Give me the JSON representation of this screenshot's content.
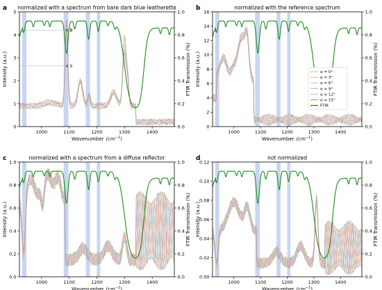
{
  "colors": {
    "ftir": "#1a8a1a",
    "band": "#b4c8ec",
    "series": [
      "#9ec3e0",
      "#f0b27a",
      "#9fd89a",
      "#e89c9c",
      "#c5b2e0",
      "#b48c82"
    ]
  },
  "chart_data": [
    {
      "type": "line",
      "panel_label": "a",
      "title": "normalized with a spectrum from bare dark blue leatherette",
      "xlabel": "Wavenumber",
      "xlabel_unit": "(cm",
      "xlabel_unit_sup": "−1",
      "xlabel_unit_close": ")",
      "ylabel": "Intensity (a.u.)",
      "y2label": "FTIR Transmission (%)",
      "xlim": [
        920,
        1480
      ],
      "ylim": [
        0,
        5
      ],
      "y2lim": [
        0,
        1.0
      ],
      "yticks": [
        "0",
        "1",
        "2",
        "3",
        "4",
        "5"
      ],
      "y2ticks": [
        "0.0",
        "0.2",
        "0.4",
        "0.6",
        "0.8",
        "1.0"
      ],
      "xticks": [
        "1000",
        "1100",
        "1200",
        "1300",
        "1400"
      ],
      "annotations": [
        {
          "text": "B",
          "x": 1092,
          "y": 4.2
        },
        {
          "text": "S",
          "x": 1092,
          "y": 2.65
        }
      ],
      "bands": [
        [
          930,
          945
        ],
        [
          1080,
          1097
        ],
        [
          1160,
          1175
        ],
        [
          1200,
          1212
        ]
      ],
      "ftir_profile": "raman_a"
    },
    {
      "type": "line",
      "panel_label": "b",
      "title": "normalized with the reference spectrum",
      "xlabel": "Wavenumber",
      "xlabel_unit": "(cm",
      "xlabel_unit_sup": "−1",
      "xlabel_unit_close": ")",
      "ylabel": "Intensity (a.u.)",
      "y2label": "FTIR Transmission (%)",
      "xlim": [
        920,
        1480
      ],
      "ylim": [
        0,
        16
      ],
      "y2lim": [
        0,
        1.0
      ],
      "yticks": [
        "0",
        "2",
        "4",
        "6",
        "8",
        "10",
        "12",
        "14",
        "16"
      ],
      "y2ticks": [
        "0.0",
        "0.2",
        "0.4",
        "0.6",
        "0.8",
        "1.0"
      ],
      "xticks": [
        "1000",
        "1100",
        "1200",
        "1300",
        "1400"
      ],
      "bands": [
        [
          930,
          945
        ],
        [
          1080,
          1097
        ],
        [
          1160,
          1175
        ],
        [
          1200,
          1212
        ]
      ],
      "legend": {
        "placement": "right",
        "entries": [
          {
            "label": "α = 0°"
          },
          {
            "label": "α = 3°"
          },
          {
            "label": "α = 6°"
          },
          {
            "label": "α = 9°"
          },
          {
            "label": "α = 12°"
          },
          {
            "label": "α = 15°"
          },
          {
            "label": "FTIR"
          }
        ]
      }
    },
    {
      "type": "line",
      "panel_label": "c",
      "title": "normalized with a spectrum from a diffuse reflector",
      "xlabel": "Wavenumber",
      "xlabel_unit": "(cm",
      "xlabel_unit_sup": "−1",
      "xlabel_unit_close": ")",
      "ylabel": "Intensity (a.u.)",
      "y2label": "FTIR Transmission (%)",
      "xlim": [
        920,
        1480
      ],
      "ylim": [
        0,
        1.0
      ],
      "y2lim": [
        0,
        1.0
      ],
      "yticks": [
        "0.0",
        "0.2",
        "0.4",
        "0.6",
        "0.8",
        "1.0"
      ],
      "y2ticks": [
        "0.0",
        "0.2",
        "0.4",
        "0.6",
        "0.8",
        "1.0"
      ],
      "xticks": [
        "1000",
        "1100",
        "1200",
        "1300",
        "1400"
      ],
      "bands": [
        [
          930,
          945
        ],
        [
          1080,
          1097
        ],
        [
          1160,
          1175
        ],
        [
          1200,
          1212
        ]
      ]
    },
    {
      "type": "line",
      "panel_label": "d",
      "title": "not normalized",
      "xlabel": "Wavenumber",
      "xlabel_unit": "(cm",
      "xlabel_unit_sup": "−1",
      "xlabel_unit_close": ")",
      "ylabel": "Intensity (a.u.)",
      "y2label": "FTIR Transmission (%)",
      "xlim": [
        920,
        1480
      ],
      "ylim": [
        0,
        0.12
      ],
      "y2lim": [
        0,
        1.0
      ],
      "yticks": [
        "0.00",
        "0.02",
        "0.04",
        "0.06",
        "0.08",
        "0.10",
        "0.12"
      ],
      "y2ticks": [
        "0.0",
        "0.2",
        "0.4",
        "0.6",
        "0.8",
        "1.0"
      ],
      "xticks": [
        "1000",
        "1100",
        "1200",
        "1300",
        "1400"
      ],
      "bands": [
        [
          930,
          945
        ],
        [
          1080,
          1097
        ],
        [
          1160,
          1175
        ],
        [
          1200,
          1212
        ]
      ]
    }
  ]
}
